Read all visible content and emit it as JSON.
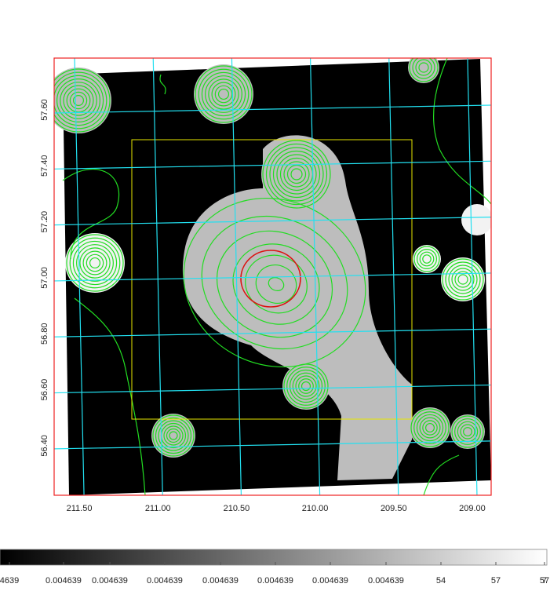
{
  "chart_data": {
    "type": "image",
    "xlim": [
      211.66,
      208.88
    ],
    "ylim": [
      56.223,
      57.785
    ],
    "xticks": [
      {
        "value": 211.5,
        "label": "211.50"
      },
      {
        "value": 211.0,
        "label": "211.00"
      },
      {
        "value": 210.5,
        "label": "210.50"
      },
      {
        "value": 210.0,
        "label": "210.00"
      },
      {
        "value": 209.5,
        "label": "209.50"
      },
      {
        "value": 209.0,
        "label": "209.00"
      }
    ],
    "yticks": [
      {
        "value": 56.4,
        "label": "56.40"
      },
      {
        "value": 56.6,
        "label": "56.60"
      },
      {
        "value": 56.8,
        "label": "56.80"
      },
      {
        "value": 57.0,
        "label": "57.00"
      },
      {
        "value": 57.2,
        "label": "57.20"
      },
      {
        "value": 57.4,
        "label": "57.40"
      },
      {
        "value": 57.6,
        "label": "57.60"
      }
    ],
    "grid": true,
    "grid_color": "#22e0f0",
    "frame_color": "#ee2222",
    "colorbar_labels": [
      "4639",
      "0.004639",
      "0.004639",
      "0.004639",
      "0.004639",
      "0.004639",
      "0.004639",
      "0.004639",
      "54",
      "57",
      "57",
      "7"
    ]
  }
}
